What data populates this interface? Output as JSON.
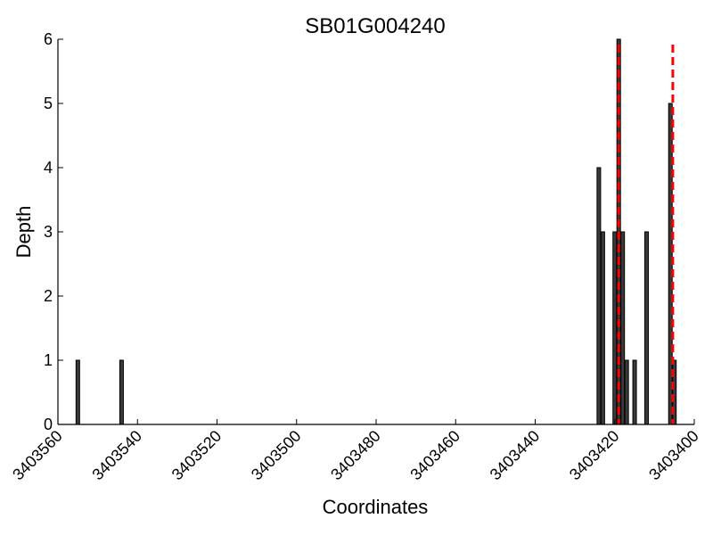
{
  "chart_data": {
    "type": "bar",
    "title": "SB01G004240",
    "xlabel": "Coordinates",
    "ylabel": "Depth",
    "x_reversed": true,
    "xlim": [
      3403400,
      3403560
    ],
    "ylim": [
      0,
      6
    ],
    "xticks": [
      3403560,
      3403540,
      3403520,
      3403500,
      3403480,
      3403460,
      3403440,
      3403420,
      3403400
    ],
    "yticks": [
      0,
      1,
      2,
      3,
      4,
      5,
      6
    ],
    "bars": [
      {
        "x": 3403555,
        "value": 1
      },
      {
        "x": 3403544,
        "value": 1
      },
      {
        "x": 3403424,
        "value": 4
      },
      {
        "x": 3403423,
        "value": 3
      },
      {
        "x": 3403420,
        "value": 3
      },
      {
        "x": 3403419,
        "value": 6
      },
      {
        "x": 3403418,
        "value": 3
      },
      {
        "x": 3403417,
        "value": 1
      },
      {
        "x": 3403415,
        "value": 1
      },
      {
        "x": 3403412,
        "value": 3
      },
      {
        "x": 3403406,
        "value": 5
      },
      {
        "x": 3403405,
        "value": 1
      }
    ],
    "bar_color": "#3a3a3a",
    "bar_edge_color": "#000000",
    "reference_lines": [
      {
        "x": 3403419,
        "color": "#ff0000",
        "style": "dashed"
      },
      {
        "x": 3403405.4,
        "color": "#ff0000",
        "style": "dashed"
      }
    ],
    "grid": false
  }
}
